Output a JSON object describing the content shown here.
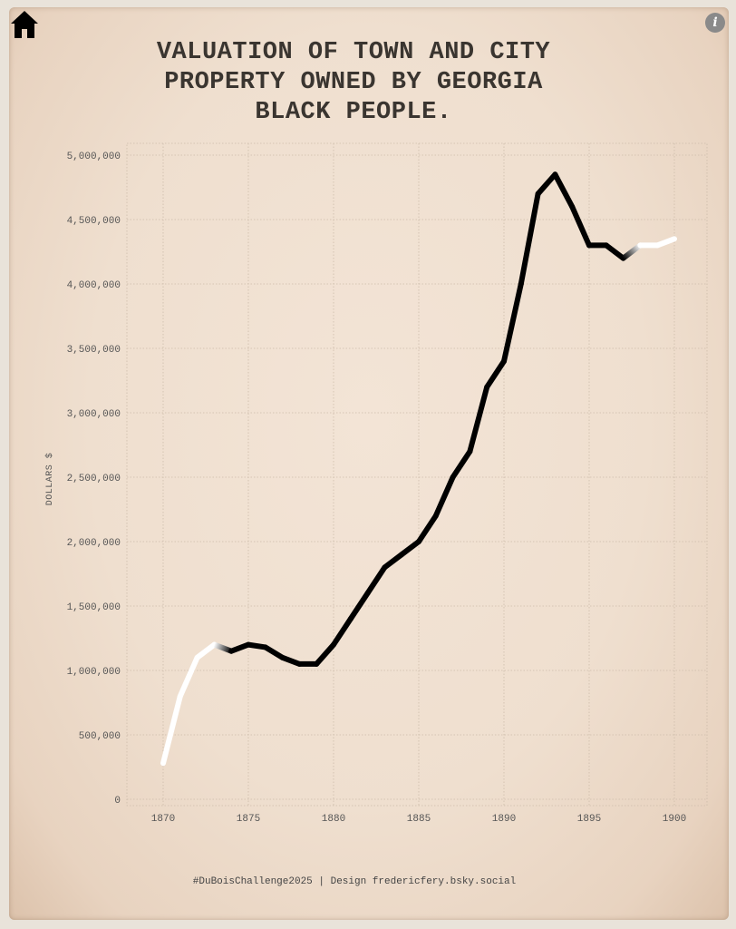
{
  "nav": {
    "home_icon": "home-icon",
    "info_icon": "info-icon",
    "info_glyph": "i"
  },
  "title_lines": [
    "VALUATION OF TOWN AND CITY",
    "PROPERTY OWNED BY GEORGIA",
    "BLACK PEOPLE."
  ],
  "footer": "#DuBoisChallenge2025 | Design fredericfery.bsky.social",
  "chart_data": {
    "type": "line",
    "title": "VALUATION OF TOWN AND CITY PROPERTY OWNED BY GEORGIA BLACK PEOPLE.",
    "xlabel": "",
    "ylabel": "DOLLARS $",
    "xlim": [
      1868,
      1902
    ],
    "ylim": [
      0,
      5000000
    ],
    "x_ticks": [
      "1870",
      "1875",
      "1880",
      "1885",
      "1890",
      "1895",
      "1900"
    ],
    "y_ticks": [
      "0",
      "500,000",
      "1,000,000",
      "1,500,000",
      "2,000,000",
      "2,500,000",
      "3,000,000",
      "3,500,000",
      "4,000,000",
      "4,500,000",
      "5,000,000"
    ],
    "grid": true,
    "colors": {
      "line_dark": "#000000",
      "line_light": "#ffffff",
      "background": "#f1e2d3",
      "grid": "#cdbcaa"
    },
    "x": [
      1870,
      1871,
      1872,
      1873,
      1874,
      1875,
      1876,
      1877,
      1878,
      1879,
      1880,
      1881,
      1882,
      1883,
      1884,
      1885,
      1886,
      1887,
      1888,
      1889,
      1890,
      1891,
      1892,
      1893,
      1894,
      1895,
      1896,
      1897,
      1898,
      1899,
      1900
    ],
    "series": [
      {
        "values": [
          280000,
          800000,
          1100000,
          1200000,
          1150000,
          1200000,
          1180000,
          1100000,
          1050000,
          1050000,
          1200000,
          1400000,
          1600000,
          1800000,
          1900000,
          2000000,
          2200000,
          2500000,
          2700000,
          3200000,
          3400000,
          4000000,
          4700000,
          4850000,
          4600000,
          4300000,
          4300000,
          4200000,
          4300000,
          4300000,
          4350000
        ],
        "color_segments": [
          {
            "from": 1870,
            "to": 1874,
            "color": "light"
          },
          {
            "from": 1874,
            "to": 1898,
            "color": "dark"
          },
          {
            "from": 1898,
            "to": 1900,
            "color": "light"
          }
        ]
      }
    ]
  }
}
